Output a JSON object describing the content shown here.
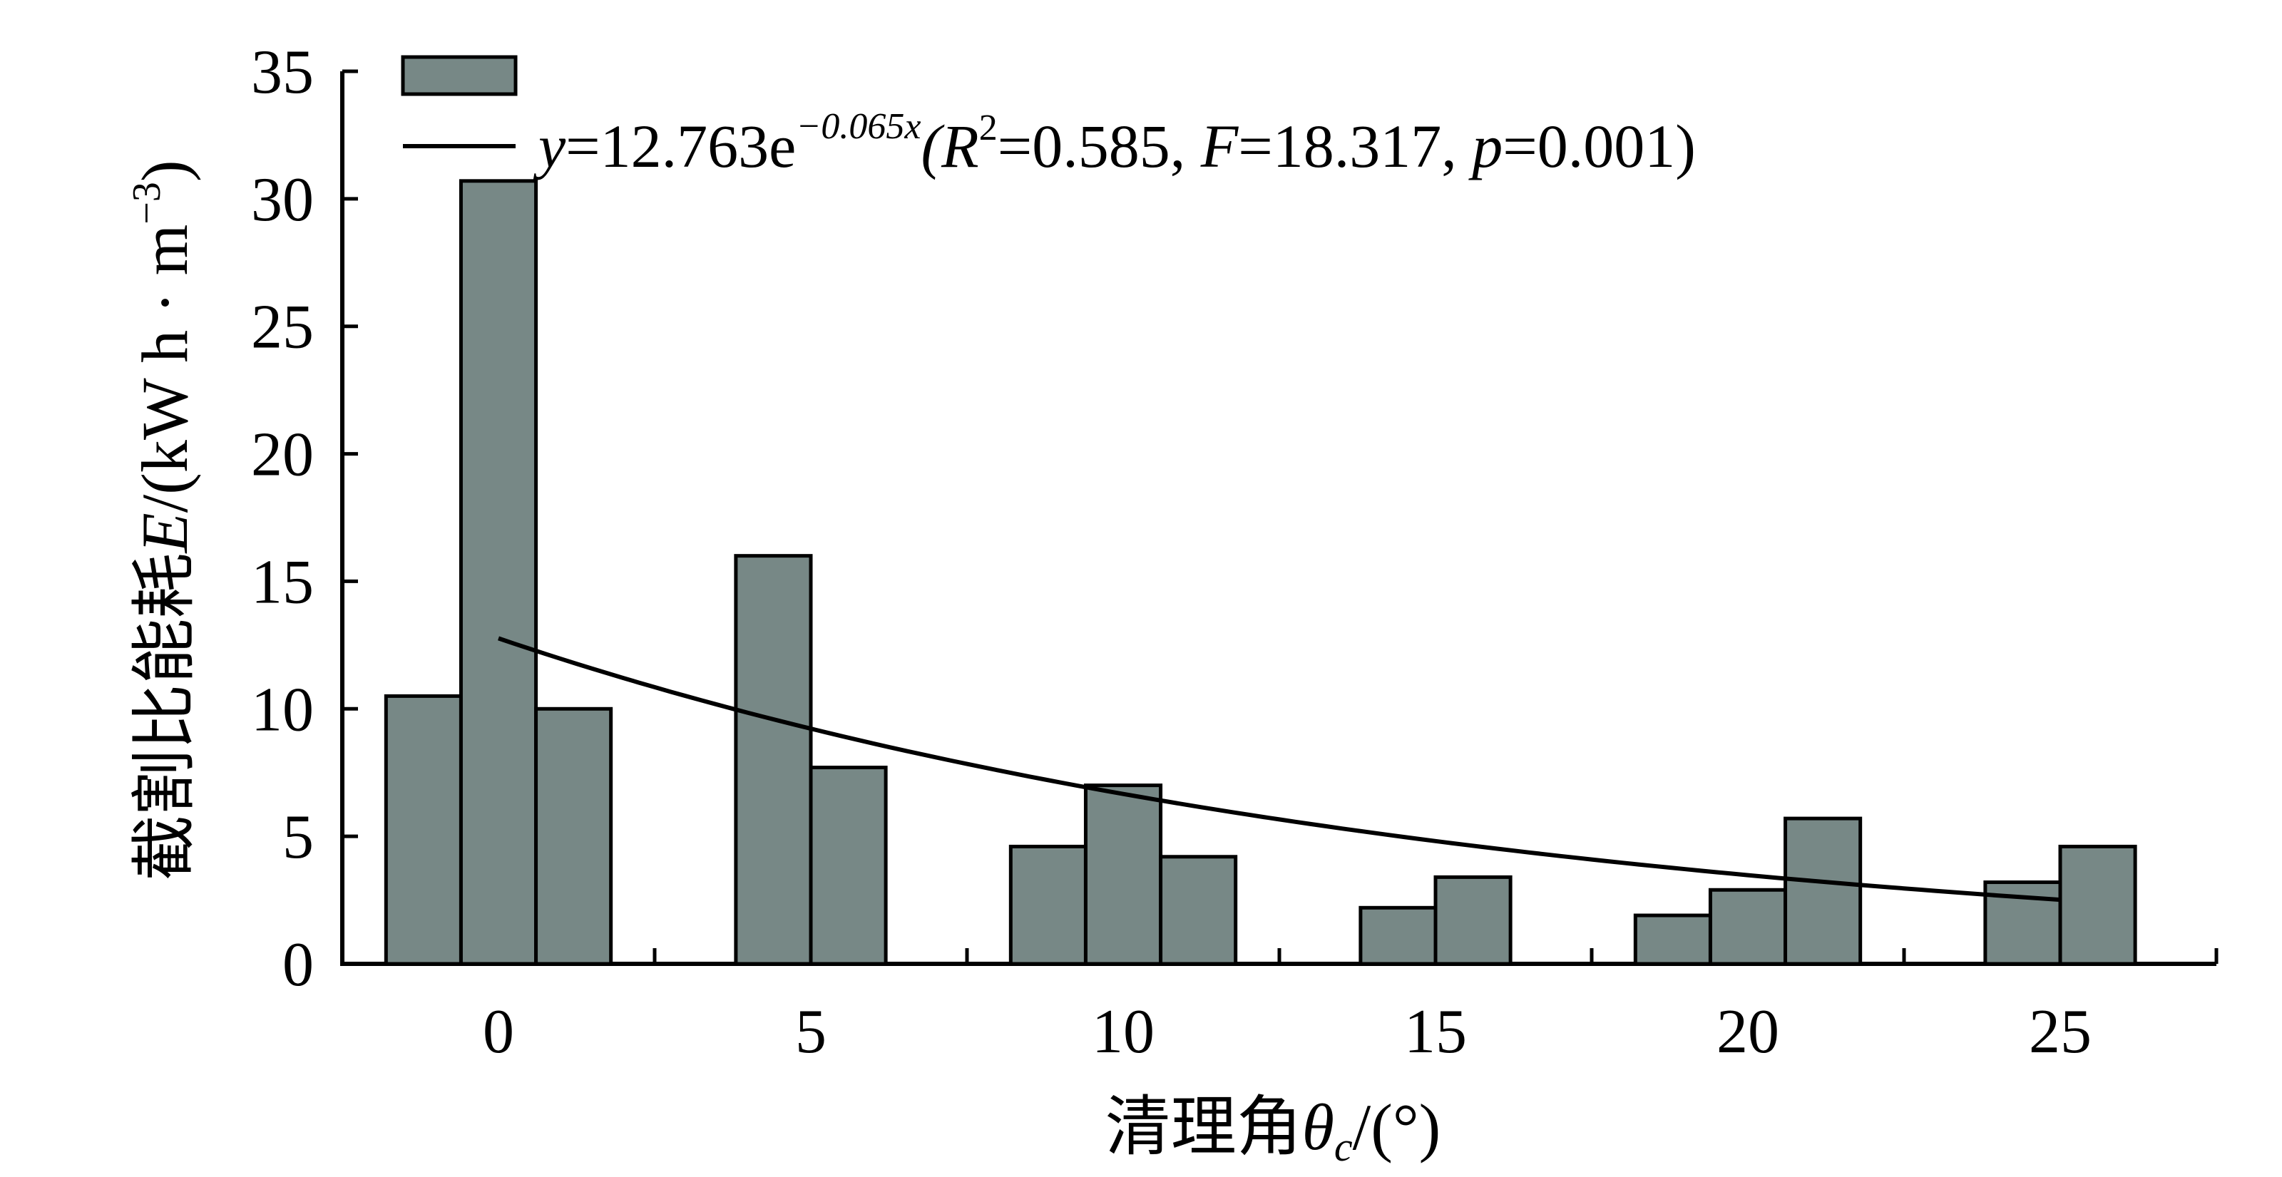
{
  "chart_data": {
    "type": "bar",
    "categories": [
      "0",
      "5",
      "10",
      "15",
      "20",
      "25"
    ],
    "bar_groups": [
      {
        "x": 0,
        "values": [
          10.5,
          30.7,
          10.0
        ]
      },
      {
        "x": 5,
        "values": [
          16.0,
          7.7
        ]
      },
      {
        "x": 10,
        "values": [
          4.6,
          7.0,
          4.2
        ]
      },
      {
        "x": 15,
        "values": [
          2.2,
          3.4
        ]
      },
      {
        "x": 20,
        "values": [
          1.9,
          2.9,
          5.7
        ]
      },
      {
        "x": 25,
        "values": [
          3.2,
          4.6
        ]
      }
    ],
    "fit": {
      "a": 12.763,
      "b": -0.065,
      "x_range": [
        0,
        25
      ]
    },
    "legend": {
      "fit_label": {
        "y": "y",
        "eq": "=12.763e",
        "exp": "−0.065x",
        "open": "(R",
        "sup2": "2",
        "r2": "=0.585, ",
        "F": "F",
        "fval": "=18.317, ",
        "p": "p",
        "pval": "=0.001)"
      }
    },
    "xlabel": {
      "prefix": "清理角",
      "symbol": "θ",
      "subscript": "c",
      "suffix": "/(°)"
    },
    "ylabel": {
      "prefix": "截割比能耗",
      "symbol": "E",
      "unit": "/(kW h · m",
      "sup": "−3",
      "close": ")"
    },
    "yticks": [
      "0",
      "5",
      "10",
      "15",
      "20",
      "25",
      "30",
      "35"
    ],
    "ylim": [
      0,
      35
    ],
    "xlim": [
      -2.5,
      27.5
    ],
    "grid": false,
    "legend_position": "top-left",
    "colors": {
      "bar_fill": "#778886",
      "bar_stroke": "#000000",
      "line": "#000000"
    }
  }
}
